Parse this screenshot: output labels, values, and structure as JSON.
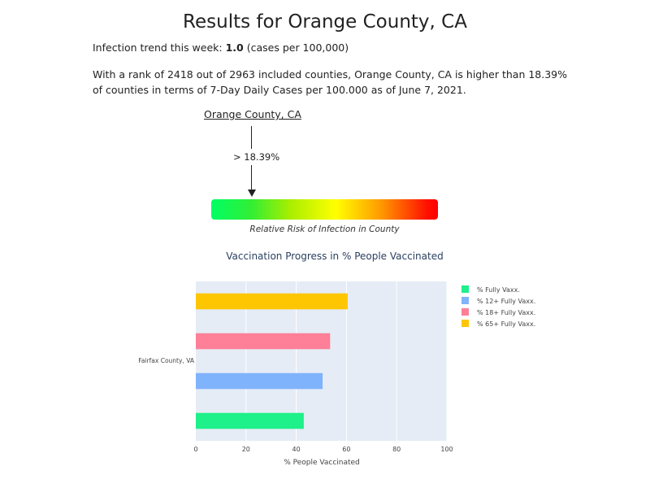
{
  "page": {
    "title": "Results for Orange County, CA",
    "trend_prefix": "Infection trend this week: ",
    "trend_value": "1.0",
    "trend_suffix": " (cases per 100,000)",
    "rank_text": "With a rank of 2418 out of 2963 included counties, Orange County, CA is higher than 18.39% of counties in terms of 7-Day Daily Cases per 100.000 as of June 7, 2021.",
    "marker_label": "Orange County, CA",
    "percentile_label": "> 18.39%",
    "percentile": 18.39,
    "risk_caption": "Relative Risk of Infection in County",
    "risk_colors": [
      "#00ff66",
      "#ffff00",
      "#ff0000"
    ]
  },
  "chart_data": {
    "type": "bar",
    "orientation": "horizontal",
    "title": "Vaccination Progress in % People Vaccinated",
    "xlabel": "% People Vaccinated",
    "category_label": "Fairfax County, VA",
    "xlim": [
      0,
      100
    ],
    "xticks": [
      0,
      20,
      40,
      60,
      80,
      100
    ],
    "grid": true,
    "legend_position": "right",
    "series": [
      {
        "name": "% Fully Vaxx.",
        "value": 43,
        "color": "#1ef08a"
      },
      {
        "name": "% 12+ Fully Vaxx.",
        "value": 50.5,
        "color": "#7fb3fb"
      },
      {
        "name": "% 18+ Fully Vaxx.",
        "value": 53.5,
        "color": "#fd7f98"
      },
      {
        "name": "% 65+ Fully Vaxx.",
        "value": 60.5,
        "color": "#fec601"
      }
    ]
  }
}
